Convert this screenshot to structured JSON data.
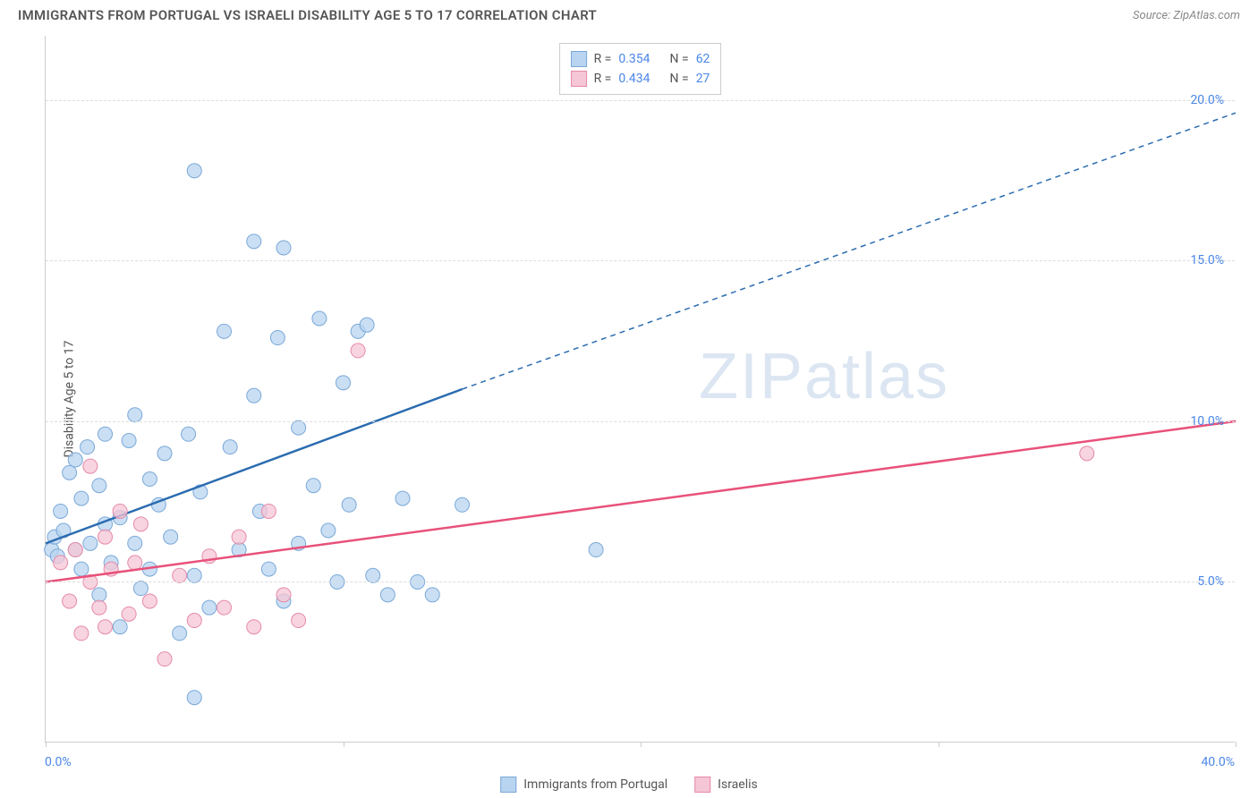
{
  "header": {
    "title": "IMMIGRANTS FROM PORTUGAL VS ISRAELI DISABILITY AGE 5 TO 17 CORRELATION CHART",
    "source": "Source: ZipAtlas.com"
  },
  "chart": {
    "type": "scatter",
    "y_axis_label": "Disability Age 5 to 17",
    "watermark": "ZIPatlas",
    "background_color": "#ffffff",
    "grid_color": "#dddddd",
    "axis_color": "#cccccc",
    "label_color": "#4a86e8",
    "xlim": [
      0,
      40
    ],
    "ylim": [
      0,
      22
    ],
    "x_ticks": [
      0,
      10,
      20,
      30,
      40
    ],
    "x_tick_labels": {
      "0": "0.0%",
      "40": "40.0%"
    },
    "y_ticks": [
      5,
      10,
      15,
      20
    ],
    "y_tick_labels": {
      "5": "5.0%",
      "10": "10.0%",
      "15": "15.0%",
      "20": "20.0%"
    },
    "series": [
      {
        "name": "Immigrants from Portugal",
        "marker_fill": "#b8d4f0",
        "marker_stroke": "#7aa8d8",
        "line_color": "#2b6cb0",
        "swatch_fill": "#b8d4f0",
        "swatch_stroke": "#7aa8d8",
        "r_value": "0.354",
        "n_value": "62",
        "marker_radius": 8,
        "line_width": 2.5,
        "trend": {
          "x1": 0,
          "y1": 6.2,
          "x2_solid": 14,
          "y2_solid": 11.0,
          "x2": 40,
          "y2": 19.6
        },
        "points": [
          [
            0.2,
            6.0
          ],
          [
            0.3,
            6.4
          ],
          [
            0.4,
            5.8
          ],
          [
            0.5,
            7.2
          ],
          [
            0.6,
            6.6
          ],
          [
            0.8,
            8.4
          ],
          [
            1.0,
            6.0
          ],
          [
            1.0,
            8.8
          ],
          [
            1.2,
            5.4
          ],
          [
            1.2,
            7.6
          ],
          [
            1.4,
            9.2
          ],
          [
            1.5,
            6.2
          ],
          [
            1.8,
            4.6
          ],
          [
            1.8,
            8.0
          ],
          [
            2.0,
            9.6
          ],
          [
            2.0,
            6.8
          ],
          [
            2.2,
            5.6
          ],
          [
            2.5,
            7.0
          ],
          [
            2.5,
            3.6
          ],
          [
            2.8,
            9.4
          ],
          [
            3.0,
            6.2
          ],
          [
            3.0,
            10.2
          ],
          [
            3.2,
            4.8
          ],
          [
            3.5,
            8.2
          ],
          [
            3.5,
            5.4
          ],
          [
            3.8,
            7.4
          ],
          [
            4.0,
            9.0
          ],
          [
            4.2,
            6.4
          ],
          [
            4.5,
            3.4
          ],
          [
            4.8,
            9.6
          ],
          [
            5.0,
            17.8
          ],
          [
            5.0,
            5.2
          ],
          [
            5.0,
            1.4
          ],
          [
            5.2,
            7.8
          ],
          [
            5.5,
            4.2
          ],
          [
            6.0,
            12.8
          ],
          [
            6.2,
            9.2
          ],
          [
            6.5,
            6.0
          ],
          [
            7.0,
            15.6
          ],
          [
            7.0,
            10.8
          ],
          [
            7.2,
            7.2
          ],
          [
            7.5,
            5.4
          ],
          [
            7.8,
            12.6
          ],
          [
            8.0,
            15.4
          ],
          [
            8.0,
            4.4
          ],
          [
            8.5,
            9.8
          ],
          [
            8.5,
            6.2
          ],
          [
            9.0,
            8.0
          ],
          [
            9.2,
            13.2
          ],
          [
            9.5,
            6.6
          ],
          [
            9.8,
            5.0
          ],
          [
            10.0,
            11.2
          ],
          [
            10.2,
            7.4
          ],
          [
            10.5,
            12.8
          ],
          [
            10.8,
            13.0
          ],
          [
            11.0,
            5.2
          ],
          [
            11.5,
            4.6
          ],
          [
            12.0,
            7.6
          ],
          [
            12.5,
            5.0
          ],
          [
            13.0,
            4.6
          ],
          [
            14.0,
            7.4
          ],
          [
            18.5,
            6.0
          ]
        ]
      },
      {
        "name": "Israelis",
        "marker_fill": "#f5c6d6",
        "marker_stroke": "#e68aa8",
        "line_color": "#e8517a",
        "swatch_fill": "#f5c6d6",
        "swatch_stroke": "#e68aa8",
        "r_value": "0.434",
        "n_value": "27",
        "marker_radius": 8,
        "line_width": 2.5,
        "trend": {
          "x1": 0,
          "y1": 5.0,
          "x2_solid": 40,
          "y2_solid": 10.0,
          "x2": 40,
          "y2": 10.0
        },
        "points": [
          [
            0.5,
            5.6
          ],
          [
            0.8,
            4.4
          ],
          [
            1.0,
            6.0
          ],
          [
            1.2,
            3.4
          ],
          [
            1.5,
            5.0
          ],
          [
            1.5,
            8.6
          ],
          [
            1.8,
            4.2
          ],
          [
            2.0,
            6.4
          ],
          [
            2.0,
            3.6
          ],
          [
            2.2,
            5.4
          ],
          [
            2.5,
            7.2
          ],
          [
            2.8,
            4.0
          ],
          [
            3.0,
            5.6
          ],
          [
            3.2,
            6.8
          ],
          [
            3.5,
            4.4
          ],
          [
            4.0,
            2.6
          ],
          [
            4.5,
            5.2
          ],
          [
            5.0,
            3.8
          ],
          [
            5.5,
            5.8
          ],
          [
            6.0,
            4.2
          ],
          [
            6.5,
            6.4
          ],
          [
            7.0,
            3.6
          ],
          [
            7.5,
            7.2
          ],
          [
            8.0,
            4.6
          ],
          [
            8.5,
            3.8
          ],
          [
            10.5,
            12.2
          ],
          [
            35.0,
            9.0
          ]
        ]
      }
    ],
    "legend_bottom": [
      {
        "label": "Immigrants from Portugal",
        "fill": "#b8d4f0",
        "stroke": "#7aa8d8"
      },
      {
        "label": "Israelis",
        "fill": "#f5c6d6",
        "stroke": "#e68aa8"
      }
    ]
  }
}
